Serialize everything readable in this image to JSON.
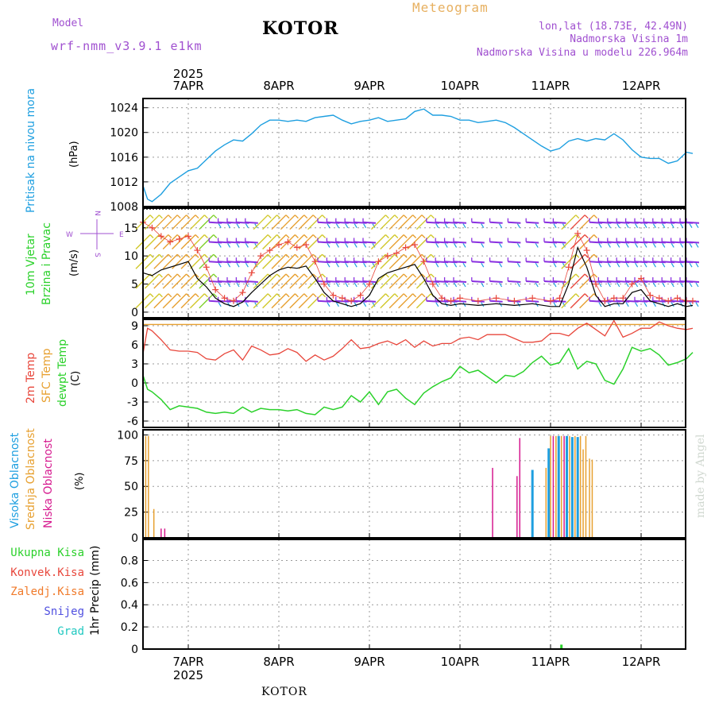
{
  "header": {
    "model_label": "Model",
    "model_name": "wrf-nmm_v3.9.1 e1km",
    "station": "KOTOR",
    "title": "Meteogram",
    "coords": "lon,lat (18.73E, 42.49N)",
    "elevation": "Nadmorska Visina 1m",
    "model_elevation": "Nadmorska Visina u modelu 226.964m",
    "footer_station": "KOTOR",
    "credit": "made by Angel"
  },
  "colors": {
    "pressure": "#1e9fe0",
    "temp2m": "#e8473c",
    "sfc_temp": "#e7a030",
    "dewpoint": "#2bd12b",
    "cloud_high": "#1e9fe0",
    "cloud_mid": "#e7a030",
    "cloud_low": "#d6198f",
    "wind_line": "#000000",
    "gust": "#e8473c",
    "precip_total": "#2bd12b",
    "precip_conv": "#e8473c",
    "precip_frz": "#f07a2a",
    "precip_snow": "#5050e0",
    "precip_grad": "#20c8c0",
    "purple": "#a050d0",
    "title_orange": "#e7b060"
  },
  "chart_data": [
    {
      "type": "line",
      "name": "pressure",
      "ylabel_parts": [
        "Pritisak na nivou mora",
        "(hPa)"
      ],
      "yticks": [
        "1008",
        "1012",
        "1016",
        "1020",
        "1024"
      ],
      "ylim": [
        1008,
        1025.5
      ],
      "x_days": [
        "7APR",
        "8APR",
        "9APR",
        "10APR",
        "11APR",
        "12APR"
      ],
      "x_year": "2025",
      "xlim_days": [
        -0.5,
        5.57
      ],
      "x": [
        -0.5,
        -0.45,
        -0.4,
        -0.3,
        -0.2,
        -0.1,
        0,
        0.1,
        0.2,
        0.3,
        0.4,
        0.5,
        0.6,
        0.7,
        0.8,
        0.9,
        1.0,
        1.1,
        1.2,
        1.3,
        1.4,
        1.5,
        1.6,
        1.7,
        1.8,
        1.9,
        2.0,
        2.1,
        2.2,
        2.3,
        2.4,
        2.5,
        2.6,
        2.7,
        2.8,
        2.9,
        3.0,
        3.1,
        3.2,
        3.3,
        3.4,
        3.5,
        3.6,
        3.7,
        3.8,
        3.9,
        4.0,
        4.1,
        4.2,
        4.3,
        4.4,
        4.5,
        4.6,
        4.7,
        4.8,
        4.9,
        5.0,
        5.1,
        5.2,
        5.3,
        5.4,
        5.5,
        5.57
      ],
      "values": [
        1011.4,
        1009.2,
        1008.8,
        1010.0,
        1011.8,
        1012.8,
        1013.8,
        1014.2,
        1015.6,
        1017.0,
        1018.0,
        1018.8,
        1018.6,
        1019.8,
        1021.2,
        1022.0,
        1022.0,
        1021.8,
        1022.0,
        1021.8,
        1022.4,
        1022.6,
        1022.8,
        1022.0,
        1021.4,
        1021.8,
        1022.0,
        1022.4,
        1021.8,
        1022.0,
        1022.2,
        1023.4,
        1023.8,
        1022.8,
        1022.8,
        1022.6,
        1022.0,
        1022.0,
        1021.6,
        1021.8,
        1022.0,
        1021.6,
        1020.8,
        1019.8,
        1018.8,
        1017.8,
        1017.0,
        1017.4,
        1018.6,
        1019.0,
        1018.6,
        1019.0,
        1018.8,
        1019.8,
        1018.8,
        1017.2,
        1016.0,
        1015.8,
        1015.8,
        1015.0,
        1015.4,
        1016.8,
        1016.6
      ]
    },
    {
      "type": "line",
      "name": "wind",
      "ylabel_parts": [
        "10m Vjetar",
        "Brzina i Pravac",
        "(m/s)"
      ],
      "compass": {
        "n": "N",
        "s": "S",
        "e": "E",
        "w": "W"
      },
      "yticks": [
        "0",
        "5",
        "10",
        "15"
      ],
      "ylim": [
        -1,
        18.5
      ],
      "x": [
        -0.5,
        -0.4,
        -0.3,
        -0.2,
        -0.1,
        0,
        0.1,
        0.2,
        0.3,
        0.4,
        0.5,
        0.6,
        0.7,
        0.8,
        0.9,
        1.0,
        1.1,
        1.2,
        1.3,
        1.4,
        1.5,
        1.6,
        1.7,
        1.8,
        1.9,
        2.0,
        2.1,
        2.2,
        2.3,
        2.4,
        2.5,
        2.6,
        2.7,
        2.8,
        2.9,
        3.0,
        3.2,
        3.4,
        3.6,
        3.8,
        4.0,
        4.1,
        4.2,
        4.3,
        4.4,
        4.5,
        4.6,
        4.7,
        4.8,
        4.9,
        5.0,
        5.1,
        5.2,
        5.3,
        5.4,
        5.5,
        5.57
      ],
      "speed": [
        7.0,
        6.5,
        7.5,
        8.0,
        8.5,
        9.0,
        6.0,
        4.5,
        2.5,
        1.5,
        1.0,
        1.8,
        3.5,
        5.0,
        6.5,
        7.5,
        8.0,
        7.8,
        8.2,
        6.0,
        3.5,
        2.0,
        1.5,
        1.0,
        1.5,
        3.0,
        6.0,
        7.0,
        7.5,
        8.0,
        8.5,
        6.0,
        3.0,
        1.5,
        1.2,
        1.5,
        1.2,
        1.5,
        1.2,
        1.5,
        1.0,
        1.0,
        5.0,
        11.5,
        8.0,
        3.0,
        1.0,
        1.5,
        1.5,
        3.5,
        4.0,
        2.0,
        1.5,
        1.0,
        1.5,
        1.0,
        1.2
      ],
      "gust": [
        16.0,
        15.0,
        13.5,
        12.5,
        13.0,
        13.5,
        11.0,
        8.0,
        4.0,
        2.5,
        2.0,
        3.5,
        7.0,
        10.0,
        11.0,
        12.0,
        12.5,
        11.5,
        12.0,
        9.0,
        5.0,
        3.0,
        2.5,
        2.0,
        3.0,
        5.0,
        9.0,
        10.0,
        10.5,
        11.5,
        12.0,
        9.0,
        5.0,
        2.5,
        2.0,
        2.5,
        2.0,
        2.5,
        2.0,
        2.5,
        2.0,
        2.5,
        8.0,
        14.0,
        11.0,
        5.0,
        2.0,
        2.5,
        2.5,
        5.0,
        6.0,
        3.0,
        2.5,
        2.0,
        2.5,
        2.0,
        2.0
      ],
      "barb_rows_ms": [
        2,
        5.5,
        9,
        12.5,
        16
      ]
    },
    {
      "type": "line",
      "name": "temperature",
      "ylabel_parts": [
        "2m Temp",
        "SFC Temp",
        "dewpt Temp",
        "(C)"
      ],
      "yticks": [
        "-6",
        "-3",
        "0",
        "3",
        "6",
        "9"
      ],
      "ylim": [
        -7,
        10
      ],
      "sfc_temp_value": 9.2,
      "x": [
        -0.5,
        -0.45,
        -0.4,
        -0.3,
        -0.2,
        -0.1,
        0,
        0.1,
        0.2,
        0.3,
        0.4,
        0.5,
        0.6,
        0.7,
        0.8,
        0.9,
        1.0,
        1.1,
        1.2,
        1.3,
        1.4,
        1.5,
        1.6,
        1.7,
        1.8,
        1.9,
        2.0,
        2.1,
        2.2,
        2.3,
        2.4,
        2.5,
        2.6,
        2.7,
        2.8,
        2.9,
        3.0,
        3.1,
        3.2,
        3.3,
        3.4,
        3.5,
        3.6,
        3.7,
        3.8,
        3.9,
        4.0,
        4.1,
        4.2,
        4.3,
        4.4,
        4.5,
        4.6,
        4.7,
        4.8,
        4.9,
        5.0,
        5.1,
        5.2,
        5.3,
        5.4,
        5.5,
        5.57
      ],
      "temp2m": [
        4.6,
        8.6,
        8.2,
        6.8,
        5.2,
        5.0,
        5.0,
        4.8,
        3.8,
        3.6,
        4.6,
        5.2,
        3.6,
        5.8,
        5.2,
        4.4,
        4.6,
        5.4,
        4.8,
        3.4,
        4.4,
        3.6,
        4.2,
        5.4,
        6.8,
        5.4,
        5.6,
        6.2,
        6.6,
        6.0,
        6.8,
        5.6,
        6.6,
        5.8,
        6.2,
        6.2,
        7.0,
        7.2,
        6.8,
        7.6,
        7.6,
        7.6,
        7.0,
        6.4,
        6.4,
        6.6,
        7.8,
        7.8,
        7.4,
        8.6,
        9.4,
        8.4,
        7.4,
        9.8,
        7.2,
        7.8,
        8.6,
        8.6,
        9.6,
        9.0,
        8.6,
        8.4,
        8.6
      ],
      "dewpoint": [
        1.2,
        -1.0,
        -1.4,
        -2.6,
        -4.2,
        -3.6,
        -3.8,
        -4.0,
        -4.6,
        -4.8,
        -4.6,
        -4.8,
        -3.8,
        -4.6,
        -4.0,
        -4.2,
        -4.2,
        -4.4,
        -4.2,
        -4.8,
        -5.0,
        -3.8,
        -4.2,
        -3.8,
        -2.0,
        -3.0,
        -1.4,
        -3.4,
        -1.4,
        -1.0,
        -2.4,
        -3.4,
        -1.6,
        -0.6,
        0.2,
        0.8,
        2.6,
        1.6,
        2.0,
        1.0,
        0.0,
        1.2,
        1.0,
        1.8,
        3.2,
        4.2,
        2.8,
        3.2,
        5.4,
        2.2,
        3.4,
        3.0,
        0.4,
        -0.2,
        2.2,
        5.6,
        5.0,
        5.4,
        4.4,
        2.8,
        3.2,
        3.8,
        4.8
      ]
    },
    {
      "type": "bar",
      "name": "clouds",
      "ylabel_parts": [
        "Visoka Oblacnost",
        "Srednja Oblacnost",
        "Niska Oblacnost",
        "(%)"
      ],
      "yticks": [
        "0",
        "25",
        "50",
        "75",
        "100"
      ],
      "ylim": [
        0,
        105
      ],
      "bars": [
        {
          "x": -0.47,
          "v": 99,
          "layer": "mid"
        },
        {
          "x": -0.44,
          "v": 99,
          "layer": "mid"
        },
        {
          "x": -0.38,
          "v": 28,
          "layer": "mid"
        },
        {
          "x": -0.3,
          "v": 9,
          "layer": "low"
        },
        {
          "x": -0.26,
          "v": 9,
          "layer": "low"
        },
        {
          "x": 3.36,
          "v": 68,
          "layer": "low"
        },
        {
          "x": 3.63,
          "v": 60,
          "layer": "low"
        },
        {
          "x": 3.66,
          "v": 97,
          "layer": "low"
        },
        {
          "x": 3.8,
          "v": 66,
          "layer": "high"
        },
        {
          "x": 3.95,
          "v": 68,
          "layer": "mid"
        },
        {
          "x": 3.98,
          "v": 87,
          "layer": "high"
        },
        {
          "x": 4.0,
          "v": 99,
          "layer": "mid"
        },
        {
          "x": 4.03,
          "v": 99,
          "layer": "low"
        },
        {
          "x": 4.06,
          "v": 99,
          "layer": "mid"
        },
        {
          "x": 4.09,
          "v": 99,
          "layer": "high"
        },
        {
          "x": 4.12,
          "v": 99,
          "layer": "mid"
        },
        {
          "x": 4.15,
          "v": 99,
          "layer": "low"
        },
        {
          "x": 4.18,
          "v": 99,
          "layer": "high"
        },
        {
          "x": 4.21,
          "v": 99,
          "layer": "mid"
        },
        {
          "x": 4.24,
          "v": 98,
          "layer": "high"
        },
        {
          "x": 4.27,
          "v": 99,
          "layer": "mid"
        },
        {
          "x": 4.3,
          "v": 98,
          "layer": "high"
        },
        {
          "x": 4.33,
          "v": 99,
          "layer": "mid"
        },
        {
          "x": 4.36,
          "v": 86,
          "layer": "mid"
        },
        {
          "x": 4.39,
          "v": 99,
          "layer": "mid"
        },
        {
          "x": 4.43,
          "v": 77,
          "layer": "mid"
        },
        {
          "x": 4.46,
          "v": 76,
          "layer": "mid"
        }
      ]
    },
    {
      "type": "bar",
      "name": "precipitation",
      "ylabel_parts": [
        "1hr Precip (mm)"
      ],
      "legend": [
        "Ukupna Kisa",
        "Konvek.Kisa",
        "Zaledj.Kisa",
        "Snijeg",
        "Grad"
      ],
      "yticks": [
        "0",
        "0.2",
        "0.4",
        "0.6",
        "0.8"
      ],
      "ylim": [
        0,
        0.99
      ],
      "bars": [
        {
          "x": 4.12,
          "v": 0.04,
          "type": "total"
        }
      ]
    }
  ]
}
